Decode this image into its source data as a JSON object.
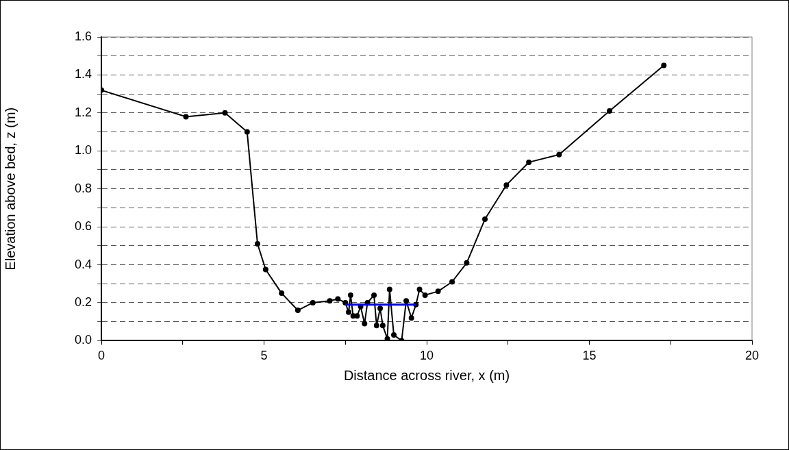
{
  "chart_data": {
    "type": "line",
    "xlabel": "Distance across river, x (m)",
    "ylabel": "Elevation above bed, z (m)",
    "xlim": [
      0,
      20
    ],
    "xticks": [
      0,
      {
        "value": 2.5,
        "label": null
      },
      5,
      {
        "value": 7.5,
        "label": null
      },
      10,
      {
        "value": 12.5,
        "label": null
      },
      15,
      {
        "value": 17.5,
        "label": null
      },
      20
    ],
    "ylim": [
      0,
      1.6
    ],
    "yticks": [
      "0.0",
      {
        "value": 0.1,
        "label": null
      },
      {
        "value": 0.2,
        "label": "0.2"
      },
      {
        "value": 0.3,
        "label": null
      },
      {
        "value": 0.4,
        "label": "0.4"
      },
      {
        "value": 0.5,
        "label": null
      },
      {
        "value": 0.6,
        "label": "0.6"
      },
      {
        "value": 0.7,
        "label": null
      },
      {
        "value": 0.8,
        "label": "0.8"
      },
      {
        "value": 0.9,
        "label": null
      },
      {
        "value": 1.0,
        "label": "1.0"
      },
      {
        "value": 1.1,
        "label": null
      },
      {
        "value": 1.2,
        "label": "1.2"
      },
      {
        "value": 1.3,
        "label": null
      },
      {
        "value": 1.4,
        "label": "1.4"
      },
      {
        "value": 1.5,
        "label": null
      },
      {
        "value": 1.6,
        "label": "1.6"
      }
    ],
    "grid": "y",
    "legend": false,
    "marker": "circle",
    "line_style": "solid",
    "series": [
      {
        "color": "#000000",
        "x": [
          0,
          2.6,
          3.8,
          4.48,
          4.8,
          5.05,
          5.54,
          6.04,
          6.5,
          7.02,
          7.27,
          7.5,
          7.6,
          7.66,
          7.74,
          7.86,
          7.97,
          8.09,
          8.18,
          8.38,
          8.46,
          8.57,
          8.65,
          8.79,
          8.86,
          8.99,
          9.23,
          9.37,
          9.53,
          9.67,
          9.78,
          9.95,
          10.35,
          10.78,
          11.23,
          11.79,
          12.45,
          13.14,
          14.07,
          15.62,
          17.29
        ],
        "values": [
          1.32,
          1.18,
          1.2,
          1.1,
          0.51,
          0.375,
          0.25,
          0.16,
          0.2,
          0.21,
          0.22,
          0.2,
          0.15,
          0.24,
          0.13,
          0.13,
          0.18,
          0.09,
          0.2,
          0.24,
          0.08,
          0.17,
          0.08,
          0.01,
          0.27,
          0.03,
          0.0,
          0.21,
          0.12,
          0.19,
          0.27,
          0.24,
          0.26,
          0.31,
          0.41,
          0.64,
          0.82,
          0.94,
          0.98,
          1.21,
          1.45
        ]
      },
      {
        "color": "#0000ff",
        "marker": "none",
        "x": [
          7.5,
          9.67
        ],
        "values": [
          0.19,
          0.19
        ]
      }
    ]
  }
}
